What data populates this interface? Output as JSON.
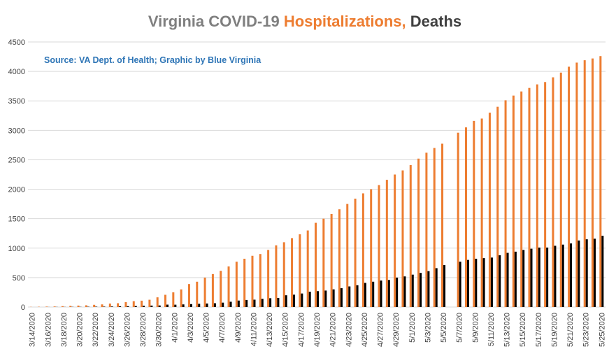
{
  "chart_data": {
    "type": "bar",
    "title": "Virginia COVID-19",
    "annotation": "Source: VA Dept. of Health; Graphic by Blue Virginia",
    "categories": [
      "3/14/2020",
      null,
      "3/16/2020",
      null,
      "3/18/2020",
      null,
      "3/20/2020",
      null,
      "3/22/2020",
      null,
      "3/24/2020",
      null,
      "3/26/2020",
      null,
      "3/28/2020",
      null,
      "3/30/2020",
      null,
      "4/1/2020",
      null,
      "4/3/2020",
      null,
      "4/5/2020",
      null,
      "4/7/2020",
      null,
      "4/9/2020",
      null,
      "4/11/2020",
      null,
      "4/13/2020",
      null,
      "4/15/2020",
      null,
      "4/17/2020",
      null,
      "4/19/2020",
      null,
      "4/21/2020",
      null,
      "4/23/2020",
      null,
      "4/25/2020",
      null,
      "4/27/2020",
      null,
      "4/29/2020",
      null,
      "5/1/2020",
      null,
      "5/3/2020",
      null,
      "5/5/2020",
      null,
      "5/7/2020",
      null,
      "5/9/2020",
      null,
      "5/11/2020",
      null,
      "5/13/2020",
      null,
      "5/15/2020",
      null,
      "5/17/2020",
      null,
      "5/19/2020",
      null,
      "5/21/2020",
      null,
      "5/23/2020",
      null,
      "5/25/2020"
    ],
    "series": [
      {
        "name": "Hospitalizations,",
        "color": "#ed7d31",
        "values": [
          3,
          5,
          8,
          10,
          15,
          20,
          25,
          30,
          38,
          45,
          59,
          65,
          83,
          100,
          108,
          124,
          165,
          208,
          250,
          300,
          390,
          430,
          500,
          560,
          615,
          690,
          770,
          820,
          870,
          900,
          970,
          1048,
          1100,
          1170,
          1235,
          1300,
          1430,
          1500,
          1580,
          1660,
          1750,
          1840,
          1930,
          2000,
          2070,
          2160,
          2250,
          2320,
          2410,
          2520,
          2620,
          2700,
          2773,
          null,
          2960,
          3050,
          3160,
          3200,
          3300,
          3400,
          3510,
          3590,
          3660,
          3720,
          3780,
          3820,
          3900,
          3980,
          4080,
          4150,
          4190,
          4220,
          4260
        ]
      },
      {
        "name": "Deaths",
        "color": "#000000",
        "values": [
          0,
          0,
          1,
          2,
          2,
          3,
          3,
          5,
          6,
          7,
          9,
          13,
          14,
          17,
          22,
          25,
          27,
          41,
          40,
          45,
          50,
          55,
          60,
          65,
          75,
          90,
          110,
          120,
          125,
          140,
          150,
          155,
          200,
          210,
          230,
          260,
          270,
          280,
          300,
          320,
          350,
          370,
          410,
          430,
          450,
          460,
          500,
          520,
          550,
          580,
          610,
          660,
          712,
          null,
          770,
          800,
          820,
          830,
          840,
          880,
          920,
          940,
          970,
          990,
          1010,
          1010,
          1040,
          1060,
          1080,
          1130,
          1150,
          1160,
          1210
        ]
      }
    ],
    "ylim": [
      0,
      4500
    ],
    "yticks": [
      0,
      500,
      1000,
      1500,
      2000,
      2500,
      3000,
      3500,
      4000,
      4500
    ],
    "grid": true
  }
}
